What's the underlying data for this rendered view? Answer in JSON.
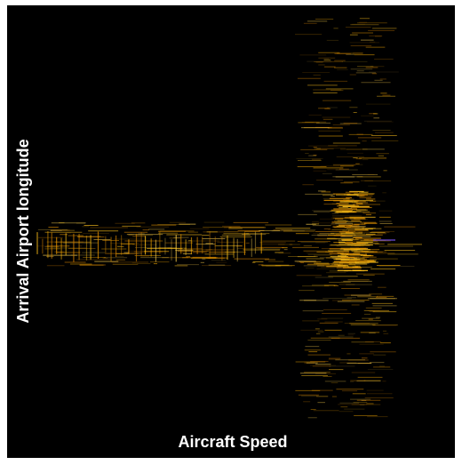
{
  "chart_data": {
    "type": "density",
    "xlabel": "Aircraft Speed",
    "ylabel": "Arrival Airport longitude"
  }
}
